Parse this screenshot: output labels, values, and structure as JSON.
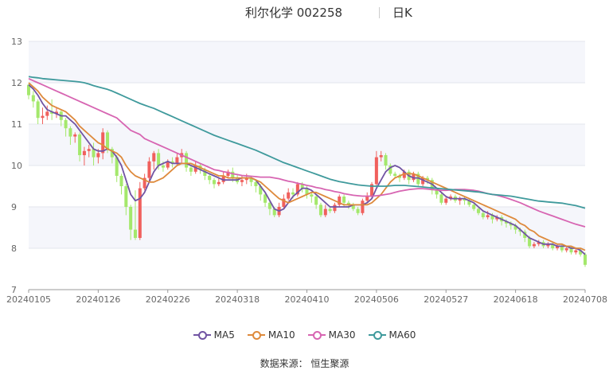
{
  "header": {
    "title": "利尔化学 002258",
    "period": "日K"
  },
  "footer": {
    "source": "数据来源：  恒生聚源"
  },
  "colors": {
    "up": "#f0605d",
    "down": "#a4e86c",
    "MA5": "#7154a3",
    "MA10": "#de8a3c",
    "MA30": "#d765b2",
    "MA60": "#3f9a9c",
    "band": "#f5f6fb"
  },
  "chart_data": {
    "type": "candlestick",
    "title": "利尔化学 002258",
    "subtitle": "日K",
    "xlabel": "",
    "ylabel": "",
    "ylim": [
      7,
      13
    ],
    "yticks": [
      7,
      8,
      9,
      10,
      11,
      12,
      13
    ],
    "xtick_labels": [
      "20240105",
      "20240126",
      "20240226",
      "20240318",
      "20240410",
      "20240506",
      "20240527",
      "20240618",
      "20240708"
    ],
    "xtick_index": [
      0,
      15,
      30,
      45,
      60,
      75,
      90,
      105,
      120
    ],
    "n": 121,
    "legend": [
      "MA5",
      "MA10",
      "MA30",
      "MA60"
    ],
    "legend_position": "bottom",
    "ohlc": [
      [
        11.95,
        11.7,
        11.97,
        11.6
      ],
      [
        11.7,
        11.55,
        11.8,
        11.4
      ],
      [
        11.55,
        11.15,
        11.6,
        11.0
      ],
      [
        11.15,
        11.2,
        11.4,
        11.0
      ],
      [
        11.2,
        11.3,
        11.45,
        11.1
      ],
      [
        11.3,
        11.25,
        11.6,
        11.1
      ],
      [
        11.25,
        11.3,
        11.4,
        11.15
      ],
      [
        11.3,
        11.1,
        11.35,
        10.95
      ],
      [
        11.1,
        10.9,
        11.15,
        10.7
      ],
      [
        10.9,
        10.7,
        10.95,
        10.5
      ],
      [
        10.7,
        10.75,
        10.8,
        10.55
      ],
      [
        10.75,
        10.25,
        10.8,
        10.1
      ],
      [
        10.25,
        10.35,
        10.45,
        10.0
      ],
      [
        10.35,
        10.4,
        10.5,
        10.2
      ],
      [
        10.4,
        10.2,
        10.55,
        10.0
      ],
      [
        10.2,
        10.3,
        10.4,
        10.05
      ],
      [
        10.3,
        10.8,
        10.9,
        10.15
      ],
      [
        10.8,
        10.4,
        10.85,
        10.3
      ],
      [
        10.4,
        10.2,
        10.45,
        10.05
      ],
      [
        10.2,
        9.75,
        10.25,
        9.6
      ],
      [
        9.75,
        9.5,
        9.8,
        9.3
      ],
      [
        9.5,
        9.0,
        9.55,
        8.8
      ],
      [
        9.0,
        8.45,
        9.05,
        8.2
      ],
      [
        8.45,
        8.25,
        9.4,
        8.2
      ],
      [
        8.25,
        9.45,
        9.6,
        8.2
      ],
      [
        9.45,
        9.7,
        9.8,
        9.4
      ],
      [
        9.7,
        10.1,
        10.2,
        9.6
      ],
      [
        10.1,
        10.3,
        10.35,
        9.9
      ],
      [
        10.3,
        10.0,
        10.4,
        9.9
      ],
      [
        10.0,
        9.95,
        10.1,
        9.85
      ],
      [
        9.95,
        10.1,
        10.15,
        9.9
      ],
      [
        10.1,
        10.05,
        10.2,
        9.95
      ],
      [
        10.05,
        10.2,
        10.3,
        10.0
      ],
      [
        10.2,
        10.3,
        10.4,
        10.05
      ],
      [
        10.3,
        9.95,
        10.35,
        9.85
      ],
      [
        9.95,
        9.85,
        10.0,
        9.75
      ],
      [
        9.85,
        10.0,
        10.1,
        9.8
      ],
      [
        10.0,
        9.9,
        10.05,
        9.8
      ],
      [
        9.9,
        9.75,
        9.95,
        9.65
      ],
      [
        9.75,
        9.65,
        9.8,
        9.55
      ],
      [
        9.65,
        9.55,
        9.7,
        9.45
      ],
      [
        9.55,
        9.6,
        9.7,
        9.5
      ],
      [
        9.6,
        9.75,
        9.85,
        9.55
      ],
      [
        9.75,
        9.85,
        9.9,
        9.7
      ],
      [
        9.85,
        9.7,
        9.95,
        9.6
      ],
      [
        9.7,
        9.6,
        9.8,
        9.55
      ],
      [
        9.6,
        9.65,
        9.75,
        9.5
      ],
      [
        9.65,
        9.7,
        9.8,
        9.55
      ],
      [
        9.7,
        9.6,
        9.75,
        9.5
      ],
      [
        9.6,
        9.5,
        9.65,
        9.35
      ],
      [
        9.5,
        9.3,
        9.55,
        9.15
      ],
      [
        9.3,
        9.1,
        9.35,
        9.0
      ],
      [
        9.1,
        8.95,
        9.15,
        8.8
      ],
      [
        8.95,
        8.8,
        9.0,
        8.75
      ],
      [
        8.8,
        9.0,
        9.1,
        8.75
      ],
      [
        9.0,
        9.2,
        9.3,
        8.95
      ],
      [
        9.2,
        9.35,
        9.45,
        9.15
      ],
      [
        9.35,
        9.3,
        9.45,
        9.2
      ],
      [
        9.3,
        9.55,
        9.6,
        9.25
      ],
      [
        9.55,
        9.45,
        9.6,
        9.35
      ],
      [
        9.45,
        9.3,
        9.5,
        9.2
      ],
      [
        9.3,
        9.25,
        9.35,
        9.1
      ],
      [
        9.25,
        9.05,
        9.3,
        8.95
      ],
      [
        9.05,
        8.8,
        9.1,
        8.75
      ],
      [
        8.8,
        8.95,
        9.05,
        8.75
      ],
      [
        8.95,
        8.9,
        9.0,
        8.85
      ],
      [
        8.9,
        9.05,
        9.1,
        8.85
      ],
      [
        9.05,
        9.25,
        9.3,
        9.0
      ],
      [
        9.25,
        9.1,
        9.3,
        9.0
      ],
      [
        9.1,
        9.05,
        9.15,
        8.95
      ],
      [
        9.05,
        8.95,
        9.1,
        8.9
      ],
      [
        8.95,
        8.85,
        9.0,
        8.8
      ],
      [
        8.85,
        9.15,
        9.2,
        8.8
      ],
      [
        9.15,
        9.25,
        9.35,
        9.1
      ],
      [
        9.25,
        9.55,
        9.6,
        9.2
      ],
      [
        9.55,
        10.2,
        10.35,
        9.5
      ],
      [
        10.2,
        10.25,
        10.35,
        10.1
      ],
      [
        10.25,
        10.0,
        10.3,
        9.9
      ],
      [
        10.0,
        9.8,
        10.05,
        9.75
      ],
      [
        9.8,
        9.75,
        9.85,
        9.7
      ],
      [
        9.75,
        9.7,
        9.8,
        9.6
      ],
      [
        9.7,
        9.85,
        9.9,
        9.65
      ],
      [
        9.85,
        9.65,
        9.9,
        9.55
      ],
      [
        9.65,
        9.8,
        9.85,
        9.6
      ],
      [
        9.8,
        9.55,
        9.85,
        9.5
      ],
      [
        9.55,
        9.7,
        9.75,
        9.5
      ],
      [
        9.7,
        9.65,
        9.75,
        9.55
      ],
      [
        9.65,
        9.4,
        9.7,
        9.3
      ],
      [
        9.4,
        9.3,
        9.45,
        9.2
      ],
      [
        9.3,
        9.1,
        9.35,
        9.05
      ],
      [
        9.1,
        9.2,
        9.25,
        9.05
      ],
      [
        9.2,
        9.25,
        9.3,
        9.15
      ],
      [
        9.25,
        9.15,
        9.3,
        9.1
      ],
      [
        9.15,
        9.2,
        9.25,
        9.05
      ],
      [
        9.2,
        9.15,
        9.25,
        9.05
      ],
      [
        9.15,
        9.05,
        9.2,
        9.0
      ],
      [
        9.05,
        8.95,
        9.1,
        8.9
      ],
      [
        8.95,
        8.85,
        9.0,
        8.8
      ],
      [
        8.85,
        8.75,
        8.9,
        8.7
      ],
      [
        8.75,
        8.8,
        8.9,
        8.7
      ],
      [
        8.8,
        8.7,
        8.85,
        8.6
      ],
      [
        8.7,
        8.75,
        8.8,
        8.65
      ],
      [
        8.75,
        8.65,
        8.8,
        8.55
      ],
      [
        8.65,
        8.6,
        8.7,
        8.5
      ],
      [
        8.6,
        8.55,
        8.65,
        8.45
      ],
      [
        8.55,
        8.45,
        8.6,
        8.35
      ],
      [
        8.45,
        8.4,
        8.5,
        8.3
      ],
      [
        8.4,
        8.25,
        8.45,
        8.15
      ],
      [
        8.25,
        8.05,
        8.3,
        8.0
      ],
      [
        8.05,
        8.1,
        8.15,
        8.0
      ],
      [
        8.1,
        8.15,
        8.2,
        8.05
      ],
      [
        8.15,
        8.05,
        8.2,
        8.0
      ],
      [
        8.05,
        8.1,
        8.15,
        8.0
      ],
      [
        8.1,
        8.0,
        8.15,
        7.95
      ],
      [
        8.0,
        8.05,
        8.1,
        7.95
      ],
      [
        8.05,
        7.95,
        8.1,
        7.9
      ],
      [
        7.95,
        8.0,
        8.05,
        7.9
      ],
      [
        8.0,
        7.9,
        8.05,
        7.85
      ],
      [
        7.9,
        7.95,
        8.0,
        7.85
      ],
      [
        7.95,
        7.85,
        8.0,
        7.8
      ],
      [
        7.85,
        7.6,
        7.9,
        7.55
      ]
    ],
    "series": [
      {
        "name": "MA5",
        "values": [
          11.95,
          11.85,
          11.7,
          11.5,
          11.35,
          11.3,
          11.25,
          11.2,
          11.2,
          11.1,
          11.0,
          10.85,
          10.7,
          10.55,
          10.4,
          10.35,
          10.35,
          10.4,
          10.35,
          10.2,
          10.0,
          9.65,
          9.3,
          9.15,
          9.2,
          9.35,
          9.6,
          9.85,
          10.0,
          10.05,
          10.1,
          10.05,
          10.05,
          10.05,
          10.05,
          10.0,
          9.95,
          9.9,
          9.85,
          9.8,
          9.75,
          9.7,
          9.65,
          9.65,
          9.65,
          9.65,
          9.7,
          9.7,
          9.7,
          9.65,
          9.5,
          9.35,
          9.15,
          8.95,
          8.9,
          8.95,
          9.1,
          9.25,
          9.35,
          9.45,
          9.45,
          9.4,
          9.3,
          9.2,
          9.1,
          9.0,
          9.0,
          9.0,
          9.0,
          9.0,
          9.05,
          9.05,
          9.05,
          9.1,
          9.2,
          9.45,
          9.65,
          9.85,
          9.95,
          10.0,
          9.95,
          9.85,
          9.75,
          9.7,
          9.7,
          9.65,
          9.6,
          9.55,
          9.45,
          9.35,
          9.25,
          9.2,
          9.2,
          9.2,
          9.2,
          9.15,
          9.1,
          9.0,
          8.9,
          8.85,
          8.8,
          8.75,
          8.7,
          8.65,
          8.6,
          8.55,
          8.45,
          8.35,
          8.25,
          8.2,
          8.15,
          8.1,
          8.1,
          8.1,
          8.05,
          8.05,
          8.05,
          8.0,
          8.0,
          7.95,
          7.85
        ]
      },
      {
        "name": "MA10",
        "values": [
          12.0,
          11.9,
          11.8,
          11.65,
          11.55,
          11.45,
          11.4,
          11.35,
          11.3,
          11.2,
          11.1,
          10.95,
          10.85,
          10.75,
          10.65,
          10.55,
          10.5,
          10.4,
          10.35,
          10.3,
          10.2,
          10.0,
          9.85,
          9.75,
          9.7,
          9.65,
          9.6,
          9.6,
          9.65,
          9.7,
          9.8,
          9.9,
          10.0,
          10.05,
          10.05,
          10.05,
          10.0,
          9.95,
          9.9,
          9.85,
          9.8,
          9.75,
          9.75,
          9.7,
          9.7,
          9.7,
          9.7,
          9.7,
          9.7,
          9.65,
          9.6,
          9.5,
          9.4,
          9.3,
          9.2,
          9.15,
          9.1,
          9.15,
          9.2,
          9.25,
          9.3,
          9.35,
          9.35,
          9.3,
          9.25,
          9.2,
          9.15,
          9.1,
          9.05,
          9.05,
          9.05,
          9.05,
          9.05,
          9.05,
          9.1,
          9.2,
          9.3,
          9.45,
          9.6,
          9.7,
          9.75,
          9.8,
          9.8,
          9.8,
          9.75,
          9.7,
          9.65,
          9.6,
          9.55,
          9.5,
          9.45,
          9.4,
          9.35,
          9.3,
          9.25,
          9.2,
          9.15,
          9.1,
          9.05,
          9.0,
          8.95,
          8.9,
          8.85,
          8.8,
          8.75,
          8.7,
          8.6,
          8.55,
          8.45,
          8.4,
          8.3,
          8.25,
          8.2,
          8.15,
          8.1,
          8.1,
          8.05,
          8.05,
          8.0,
          8.0,
          7.95
        ]
      },
      {
        "name": "MA30",
        "values": [
          12.1,
          12.05,
          12.0,
          11.95,
          11.9,
          11.85,
          11.8,
          11.75,
          11.7,
          11.65,
          11.6,
          11.55,
          11.5,
          11.45,
          11.4,
          11.35,
          11.3,
          11.25,
          11.2,
          11.15,
          11.05,
          10.95,
          10.85,
          10.8,
          10.75,
          10.65,
          10.6,
          10.55,
          10.5,
          10.45,
          10.4,
          10.35,
          10.3,
          10.25,
          10.2,
          10.15,
          10.1,
          10.05,
          10.0,
          9.95,
          9.9,
          9.88,
          9.85,
          9.83,
          9.8,
          9.78,
          9.76,
          9.75,
          9.74,
          9.73,
          9.72,
          9.72,
          9.72,
          9.7,
          9.68,
          9.65,
          9.62,
          9.6,
          9.57,
          9.55,
          9.52,
          9.5,
          9.47,
          9.45,
          9.42,
          9.4,
          9.37,
          9.35,
          9.32,
          9.3,
          9.28,
          9.27,
          9.26,
          9.26,
          9.26,
          9.27,
          9.28,
          9.3,
          9.32,
          9.35,
          9.38,
          9.4,
          9.42,
          9.43,
          9.44,
          9.44,
          9.43,
          9.42,
          9.41,
          9.4,
          9.4,
          9.41,
          9.42,
          9.42,
          9.42,
          9.41,
          9.4,
          9.38,
          9.35,
          9.32,
          9.3,
          9.28,
          9.25,
          9.22,
          9.18,
          9.14,
          9.1,
          9.05,
          9.0,
          8.95,
          8.9,
          8.86,
          8.82,
          8.78,
          8.74,
          8.7,
          8.66,
          8.62,
          8.58,
          8.55,
          8.52
        ]
      },
      {
        "name": "MA60",
        "values": [
          12.15,
          12.13,
          12.12,
          12.1,
          12.09,
          12.08,
          12.07,
          12.06,
          12.05,
          12.04,
          12.03,
          12.02,
          12.0,
          11.97,
          11.93,
          11.9,
          11.87,
          11.84,
          11.8,
          11.75,
          11.7,
          11.65,
          11.6,
          11.55,
          11.5,
          11.46,
          11.42,
          11.38,
          11.33,
          11.28,
          11.23,
          11.18,
          11.13,
          11.08,
          11.03,
          10.98,
          10.93,
          10.88,
          10.83,
          10.78,
          10.73,
          10.69,
          10.65,
          10.61,
          10.57,
          10.53,
          10.49,
          10.45,
          10.41,
          10.37,
          10.32,
          10.27,
          10.22,
          10.17,
          10.12,
          10.07,
          10.03,
          9.99,
          9.95,
          9.91,
          9.87,
          9.83,
          9.79,
          9.75,
          9.71,
          9.67,
          9.64,
          9.61,
          9.59,
          9.57,
          9.55,
          9.53,
          9.52,
          9.51,
          9.5,
          9.5,
          9.5,
          9.5,
          9.51,
          9.52,
          9.52,
          9.52,
          9.51,
          9.5,
          9.49,
          9.48,
          9.47,
          9.46,
          9.45,
          9.44,
          9.43,
          9.42,
          9.41,
          9.4,
          9.39,
          9.38,
          9.37,
          9.36,
          9.34,
          9.32,
          9.3,
          9.29,
          9.28,
          9.27,
          9.26,
          9.24,
          9.22,
          9.2,
          9.18,
          9.16,
          9.14,
          9.13,
          9.12,
          9.11,
          9.1,
          9.09,
          9.07,
          9.05,
          9.03,
          9.0,
          8.97
        ]
      }
    ]
  }
}
